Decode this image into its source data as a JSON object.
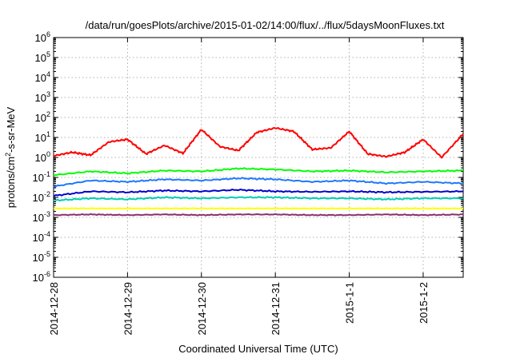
{
  "chart_data": {
    "type": "line",
    "title": "/data/run/goesPlots/archive/2015-01-02/14:00/flux/../flux/5daysMoonFluxes.txt",
    "xlabel": "Coordinated Universal Time (UTC)",
    "ylabel": {
      "base": "protons/cm",
      "sup": "2",
      "rest": "-s-sr-MeV"
    },
    "yscale": "log",
    "ylim": [
      1e-06,
      1000000.0
    ],
    "xlim": [
      "2014-12-28",
      "2015-01-02T13:00"
    ],
    "grid": true,
    "legend": "none",
    "y_ticks": [
      {
        "base": "10",
        "exp": "6",
        "value": 1000000.0
      },
      {
        "base": "10",
        "exp": "5",
        "value": 100000.0
      },
      {
        "base": "10",
        "exp": "4",
        "value": 10000.0
      },
      {
        "base": "10",
        "exp": "3",
        "value": 1000.0
      },
      {
        "base": "10",
        "exp": "2",
        "value": 100.0
      },
      {
        "base": "10",
        "exp": "1",
        "value": 10.0
      },
      {
        "base": "10",
        "exp": "0",
        "value": 1.0
      },
      {
        "base": "10",
        "exp": "-1",
        "value": 0.1
      },
      {
        "base": "10",
        "exp": "-2",
        "value": 0.01
      },
      {
        "base": "10",
        "exp": "-3",
        "value": 0.001
      },
      {
        "base": "10",
        "exp": "-4",
        "value": 0.0001
      },
      {
        "base": "10",
        "exp": "-5",
        "value": 1e-05
      },
      {
        "base": "10",
        "exp": "-6",
        "value": 1e-06
      }
    ],
    "x_ticks": [
      {
        "label": "2014-12-28",
        "value": "2014-12-28"
      },
      {
        "label": "2014-12-29",
        "value": "2014-12-29"
      },
      {
        "label": "2014-12-30",
        "value": "2014-12-30"
      },
      {
        "label": "2014-12-31",
        "value": "2014-12-31"
      },
      {
        "label": "2015-1-1",
        "value": "2015-01-01"
      },
      {
        "label": "2015-1-2",
        "value": "2015-01-02"
      }
    ],
    "series": [
      {
        "color": "#ff0000",
        "x": [
          "2014-12-28T00:00",
          "2014-12-28T06:00",
          "2014-12-28T12:00",
          "2014-12-28T18:00",
          "2014-12-29T00:00",
          "2014-12-29T06:00",
          "2014-12-29T12:00",
          "2014-12-29T18:00",
          "2014-12-30T00:00",
          "2014-12-30T06:00",
          "2014-12-30T12:00",
          "2014-12-30T18:00",
          "2014-12-31T00:00",
          "2014-12-31T06:00",
          "2014-12-31T12:00",
          "2014-12-31T18:00",
          "2015-01-01T00:00",
          "2015-01-01T06:00",
          "2015-01-01T12:00",
          "2015-01-01T18:00",
          "2015-01-02T00:00",
          "2015-01-02T06:00",
          "2015-01-02T13:00"
        ],
        "y": [
          1.2,
          1.8,
          1.3,
          6,
          8,
          1.5,
          4,
          1.6,
          25,
          3.5,
          2.2,
          18,
          30,
          20,
          2.5,
          3,
          20,
          1.5,
          1.1,
          1.8,
          8,
          1.0,
          15
        ]
      },
      {
        "color": "#00ff00",
        "x": [
          "2014-12-28T00:00",
          "2014-12-28T12:00",
          "2014-12-29T00:00",
          "2014-12-29T12:00",
          "2014-12-30T00:00",
          "2014-12-30T12:00",
          "2014-12-31T00:00",
          "2014-12-31T12:00",
          "2015-01-01T00:00",
          "2015-01-01T12:00",
          "2015-01-02T00:00",
          "2015-01-02T13:00"
        ],
        "y": [
          0.13,
          0.2,
          0.16,
          0.22,
          0.2,
          0.28,
          0.25,
          0.2,
          0.22,
          0.18,
          0.2,
          0.22
        ]
      },
      {
        "color": "#1e78ff",
        "x": [
          "2014-12-28T00:00",
          "2014-12-28T12:00",
          "2014-12-29T00:00",
          "2014-12-29T12:00",
          "2014-12-30T00:00",
          "2014-12-30T12:00",
          "2014-12-31T00:00",
          "2014-12-31T12:00",
          "2015-01-01T00:00",
          "2015-01-01T12:00",
          "2015-01-02T00:00",
          "2015-01-02T13:00"
        ],
        "y": [
          0.035,
          0.07,
          0.06,
          0.08,
          0.07,
          0.09,
          0.08,
          0.06,
          0.07,
          0.05,
          0.06,
          0.05
        ]
      },
      {
        "color": "#0000cd",
        "x": [
          "2014-12-28T00:00",
          "2014-12-28T12:00",
          "2014-12-29T00:00",
          "2014-12-29T12:00",
          "2014-12-30T00:00",
          "2014-12-30T12:00",
          "2014-12-31T00:00",
          "2014-12-31T12:00",
          "2015-01-01T00:00",
          "2015-01-01T12:00",
          "2015-01-02T00:00",
          "2015-01-02T13:00"
        ],
        "y": [
          0.012,
          0.02,
          0.018,
          0.022,
          0.02,
          0.024,
          0.02,
          0.019,
          0.02,
          0.018,
          0.019,
          0.02
        ]
      },
      {
        "color": "#00cdb4",
        "x": [
          "2014-12-28T00:00",
          "2014-12-28T12:00",
          "2014-12-29T00:00",
          "2014-12-29T12:00",
          "2014-12-30T00:00",
          "2014-12-30T12:00",
          "2014-12-31T00:00",
          "2014-12-31T12:00",
          "2015-01-01T00:00",
          "2015-01-01T12:00",
          "2015-01-02T00:00",
          "2015-01-02T13:00"
        ],
        "y": [
          0.007,
          0.009,
          0.008,
          0.01,
          0.009,
          0.01,
          0.01,
          0.009,
          0.009,
          0.008,
          0.009,
          0.009
        ]
      },
      {
        "color": "#ffff00",
        "x": [
          "2014-12-28T00:00",
          "2014-12-28T12:00",
          "2014-12-29T00:00",
          "2014-12-29T12:00",
          "2014-12-30T00:00",
          "2014-12-30T12:00",
          "2014-12-31T00:00",
          "2014-12-31T12:00",
          "2015-01-01T00:00",
          "2015-01-01T12:00",
          "2015-01-02T00:00",
          "2015-01-02T13:00"
        ],
        "y": [
          0.0028,
          0.0028,
          0.0028,
          0.0028,
          0.0028,
          0.0028,
          0.0028,
          0.0028,
          0.0028,
          0.0028,
          0.0028,
          0.0028
        ]
      },
      {
        "color": "#8b2f6e",
        "x": [
          "2014-12-28T00:00",
          "2014-12-28T12:00",
          "2014-12-29T00:00",
          "2014-12-29T12:00",
          "2014-12-30T00:00",
          "2014-12-30T12:00",
          "2014-12-31T00:00",
          "2014-12-31T12:00",
          "2015-01-01T00:00",
          "2015-01-01T12:00",
          "2015-01-02T00:00",
          "2015-01-02T13:00"
        ],
        "y": [
          0.0013,
          0.0014,
          0.0013,
          0.0014,
          0.0013,
          0.0014,
          0.0014,
          0.0013,
          0.0013,
          0.0014,
          0.0013,
          0.0014
        ]
      }
    ]
  }
}
